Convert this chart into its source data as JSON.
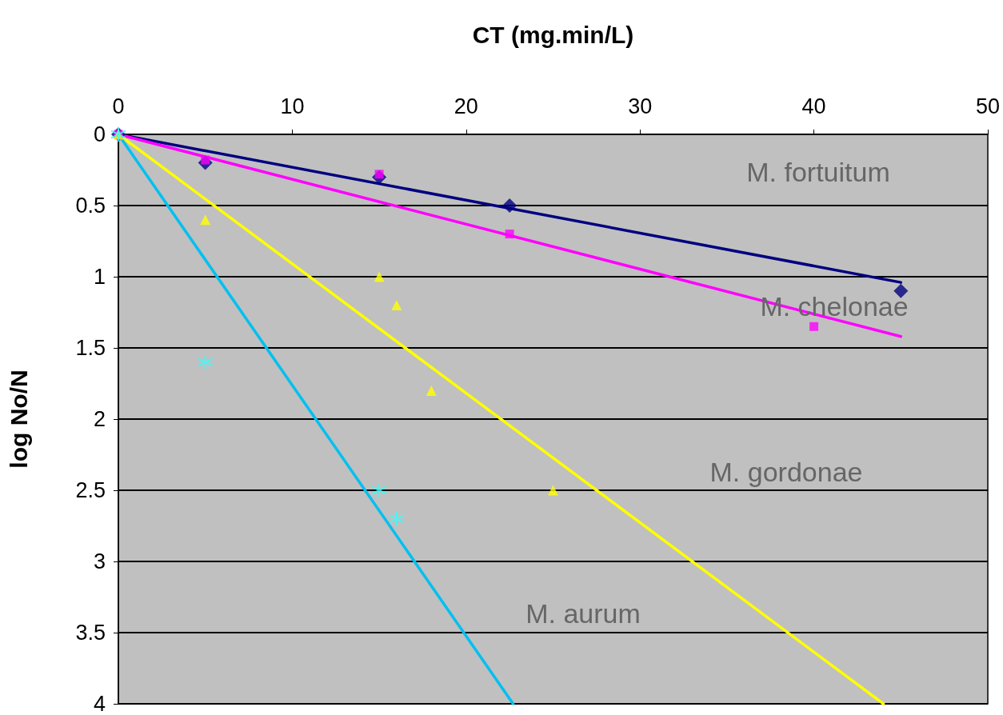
{
  "chart_data": {
    "type": "scatter",
    "xlabel": "CT (mg.min/L)",
    "ylabel": "log No/N",
    "xlim": [
      0,
      50
    ],
    "xticks": [
      0,
      10,
      20,
      30,
      40,
      50
    ],
    "ylim": [
      4,
      0
    ],
    "yticks": [
      0,
      0.5,
      1,
      1.5,
      2,
      2.5,
      3,
      3.5,
      4
    ],
    "grid": "y",
    "series": [
      {
        "color": "#000080",
        "marker": "diamond",
        "x": [
          0,
          5,
          15,
          22.5,
          45
        ],
        "values": [
          0,
          0.2,
          0.3,
          0.5,
          1.1
        ]
      },
      {
        "color": "#ff00ff",
        "marker": "square",
        "x": [
          0,
          5,
          15,
          22.5,
          40
        ],
        "values": [
          0,
          0.18,
          0.28,
          0.7,
          1.35
        ]
      },
      {
        "color": "#ffff00",
        "marker": "triangle",
        "x": [
          0,
          5,
          15,
          16,
          18,
          25
        ],
        "values": [
          0,
          0.6,
          1.0,
          1.2,
          1.8,
          2.5
        ]
      },
      {
        "color": "#33ffff",
        "marker": "cross",
        "x": [
          0,
          5,
          15,
          16
        ],
        "values": [
          0,
          1.6,
          2.5,
          2.7
        ]
      },
      {
        "type": "line",
        "color": "#000080",
        "marker": "none",
        "x": [
          0,
          45
        ],
        "values": [
          0,
          1.04
        ]
      },
      {
        "type": "line",
        "color": "#ff00ff",
        "marker": "none",
        "x": [
          0,
          45
        ],
        "values": [
          0,
          1.42
        ]
      },
      {
        "type": "line",
        "color": "#ffff00",
        "marker": "none",
        "x": [
          0,
          44
        ],
        "values": [
          0,
          4
        ]
      },
      {
        "type": "line",
        "color": "#00c0f0",
        "marker": "none",
        "x": [
          0,
          22.7
        ],
        "values": [
          0,
          4
        ]
      }
    ],
    "annotations": [
      "M. fortuitum",
      "M. chelonae",
      "M. gordonae",
      "M. aurum"
    ]
  }
}
